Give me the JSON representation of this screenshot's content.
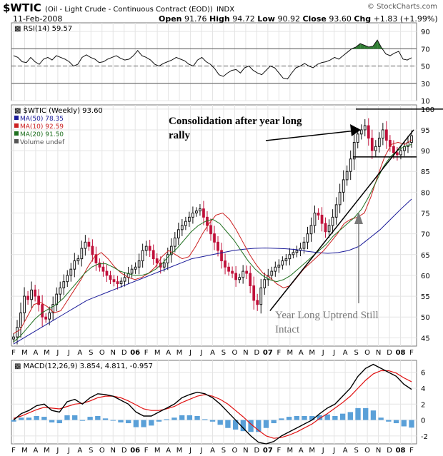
{
  "header": {
    "symbol": "$WTIC",
    "description": "(Oil - Light Crude - Continuous Contract (EOD))",
    "exchange": "INDX",
    "date": "11-Feb-2008",
    "open_label": "Open",
    "open": "91.76",
    "high_label": "High",
    "high": "94.72",
    "low_label": "Low",
    "low": "90.92",
    "close_label": "Close",
    "close": "93.60",
    "chg_label": "Chg",
    "chg": "+1.83 (+1.99%)",
    "copyright": "© StockCharts.com"
  },
  "annotations": {
    "consolidation_line1": "Consolidation after year long",
    "consolidation_line2": "rally",
    "uptrend_line1": "Year Long Uptrend Still",
    "uptrend_line2": "Intact"
  },
  "colors": {
    "candle_up": "#111111",
    "candle_down": "#c0103a",
    "ma50": "#1a1a99",
    "ma10": "#cc2020",
    "ma20": "#207020",
    "rsi_fill": "#2f7d32",
    "volume": "#5aa0d8"
  },
  "chart_data": [
    {
      "type": "line",
      "title": "RSI(14) 59.57",
      "ylim": [
        10,
        100
      ],
      "y_ticks": [
        10,
        30,
        50,
        70,
        90
      ],
      "reference_lines": [
        30,
        50,
        70
      ],
      "grid": true,
      "series": [
        {
          "name": "RSI(14)",
          "values": [
            62,
            60,
            55,
            54,
            60,
            55,
            52,
            58,
            60,
            57,
            62,
            60,
            58,
            55,
            50,
            52,
            60,
            63,
            60,
            58,
            54,
            55,
            58,
            60,
            62,
            59,
            57,
            58,
            62,
            68,
            62,
            60,
            57,
            52,
            50,
            53,
            55,
            57,
            60,
            58,
            56,
            52,
            50,
            57,
            60,
            55,
            52,
            47,
            40,
            38,
            42,
            45,
            46,
            42,
            48,
            50,
            45,
            42,
            40,
            45,
            50,
            48,
            42,
            36,
            35,
            42,
            48,
            50,
            53,
            50,
            48,
            52,
            54,
            55,
            57,
            60,
            58,
            62,
            66,
            70,
            72,
            76,
            74,
            72,
            73,
            80,
            71,
            64,
            62,
            65,
            67,
            58,
            57,
            59.57
          ]
        }
      ]
    },
    {
      "type": "line",
      "title": "$WTIC (Weekly) 93.60",
      "ylim": [
        43,
        101
      ],
      "y_ticks": [
        45,
        50,
        55,
        60,
        65,
        70,
        75,
        80,
        85,
        90,
        95,
        100
      ],
      "grid": true,
      "legend_position": "top-left",
      "x_tick_labels": [
        "F",
        "M",
        "A",
        "M",
        "J",
        "J",
        "A",
        "S",
        "O",
        "N",
        "D",
        "06",
        "F",
        "M",
        "A",
        "M",
        "J",
        "J",
        "A",
        "S",
        "O",
        "N",
        "D",
        "07",
        "F",
        "M",
        "A",
        "M",
        "J",
        "J",
        "A",
        "S",
        "O",
        "N",
        "D",
        "08",
        "F"
      ],
      "series": [
        {
          "name": "$WTIC (Weekly)",
          "values": [
            45.2,
            47.5,
            51.0,
            55.0,
            54.2,
            56.5,
            55.0,
            53.0,
            50.0,
            49.5,
            51.0,
            53.0,
            55.5,
            57.0,
            58.5,
            60.0,
            61.5,
            63.5,
            64.0,
            66.5,
            68.0,
            67.0,
            65.0,
            63.0,
            62.0,
            61.0,
            60.0,
            59.0,
            58.5,
            58.0,
            58.6,
            59.5,
            60.5,
            61.5,
            62.0,
            63.5,
            66.0,
            67.0,
            66.0,
            64.0,
            63.0,
            62.0,
            63.0,
            65.0,
            67.0,
            69.0,
            71.0,
            72.0,
            73.0,
            74.0,
            75.0,
            75.5,
            76.0,
            74.0,
            72.0,
            70.0,
            68.0,
            66.0,
            63.5,
            62.0,
            61.0,
            60.5,
            59.0,
            59.5,
            61.0,
            60.5,
            57.5,
            54.0,
            53.0,
            57.0,
            59.0,
            60.0,
            61.0,
            62.0,
            62.5,
            63.5,
            64.0,
            65.0,
            65.5,
            66.0,
            66.5,
            68.0,
            70.0,
            72.0,
            75.0,
            74.5,
            72.5,
            70.5,
            72.0,
            74.0,
            77.0,
            80.0,
            83.0,
            85.0,
            88.0,
            92.0,
            94.0,
            95.0,
            96.0,
            93.0,
            90.0,
            91.0,
            93.0,
            95.0,
            92.5,
            91.0,
            89.5,
            89.0,
            90.0,
            91.0,
            92.0,
            93.6
          ]
        },
        {
          "name": "MA(50)",
          "value_label": "78.35",
          "values": [
            43.5,
            45.0,
            46.5,
            48.0,
            49.5,
            51.0,
            52.5,
            54.0,
            55.0,
            56.0,
            57.0,
            58.0,
            59.0,
            60.0,
            61.0,
            62.0,
            63.0,
            64.0,
            64.5,
            65.0,
            65.5,
            66.0,
            66.3,
            66.5,
            66.6,
            66.5,
            66.4,
            66.2,
            65.8,
            65.5,
            65.3,
            65.5,
            66.0,
            67.0,
            69.0,
            71.0,
            73.5,
            76.0,
            78.35
          ]
        },
        {
          "name": "MA(10)",
          "value_label": "92.59",
          "values": [
            46.0,
            47.0,
            50.0,
            53.0,
            53.5,
            52.5,
            51.0,
            51.5,
            54.0,
            56.5,
            59.0,
            62.0,
            64.5,
            65.5,
            64.0,
            62.0,
            60.5,
            59.5,
            59.0,
            59.5,
            60.5,
            62.0,
            64.5,
            66.0,
            65.0,
            64.0,
            64.5,
            67.0,
            70.0,
            72.5,
            74.5,
            75.0,
            73.5,
            71.0,
            68.0,
            65.0,
            62.5,
            60.5,
            59.5,
            58.0,
            57.0,
            57.5,
            59.5,
            61.5,
            63.0,
            64.5,
            66.0,
            68.0,
            70.0,
            72.5,
            73.5,
            74.0,
            75.0,
            79.0,
            84.0,
            88.5,
            91.5,
            92.0,
            91.5,
            92.59
          ]
        },
        {
          "name": "MA(20)",
          "value_label": "91.50",
          "values": [
            44.0,
            45.5,
            47.5,
            49.5,
            51.0,
            52.0,
            53.0,
            54.5,
            56.5,
            58.5,
            60.5,
            62.0,
            62.8,
            62.8,
            62.0,
            61.0,
            60.5,
            60.0,
            60.0,
            60.5,
            61.5,
            63.0,
            65.0,
            66.5,
            68.5,
            70.5,
            72.0,
            73.0,
            73.5,
            72.5,
            70.5,
            68.5,
            66.0,
            63.5,
            61.5,
            60.0,
            59.0,
            58.5,
            59.0,
            60.0,
            61.5,
            63.0,
            64.5,
            66.0,
            67.5,
            69.5,
            71.0,
            72.5,
            74.0,
            76.0,
            79.0,
            82.5,
            86.0,
            88.5,
            90.0,
            91.0,
            91.5
          ]
        },
        {
          "name": "Volume undef",
          "values": []
        }
      ],
      "trendlines": [
        {
          "name": "uptrend",
          "from": [
            "07-Jan",
            51.5
          ],
          "to": [
            "08-Feb",
            95.0
          ]
        },
        {
          "name": "consolidation-top",
          "value": 100
        },
        {
          "name": "consolidation-bottom",
          "value": 88.5
        }
      ]
    },
    {
      "type": "line",
      "title": "MACD(12,26,9) 3.854, 4.811, -0.957",
      "ylim": [
        -3,
        7.5
      ],
      "y_ticks": [
        -2,
        0,
        2,
        4,
        6
      ],
      "grid": true,
      "series": [
        {
          "name": "MACD(12,26,9)",
          "value_label": "3.854",
          "values": [
            0.0,
            0.8,
            1.2,
            1.8,
            2.0,
            1.2,
            1.0,
            2.3,
            2.6,
            2.0,
            2.8,
            3.3,
            3.2,
            3.0,
            2.5,
            2.0,
            1.0,
            0.5,
            0.5,
            1.0,
            1.5,
            2.0,
            2.8,
            3.2,
            3.5,
            3.3,
            2.8,
            2.0,
            1.0,
            0.0,
            -1.0,
            -2.0,
            -2.8,
            -3.0,
            -2.7,
            -2.0,
            -1.5,
            -1.0,
            -0.5,
            0.0,
            0.8,
            1.5,
            2.0,
            3.0,
            4.0,
            5.5,
            6.5,
            7.0,
            6.5,
            6.0,
            5.5,
            4.5,
            3.854
          ]
        },
        {
          "name": "signal",
          "value_label": "4.811",
          "values": [
            0.2,
            0.5,
            0.9,
            1.3,
            1.6,
            1.5,
            1.4,
            1.7,
            2.0,
            2.1,
            2.4,
            2.8,
            3.0,
            3.0,
            2.8,
            2.4,
            1.9,
            1.4,
            1.2,
            1.2,
            1.4,
            1.7,
            2.2,
            2.6,
            3.0,
            3.2,
            3.0,
            2.6,
            2.0,
            1.2,
            0.4,
            -0.5,
            -1.3,
            -2.0,
            -2.3,
            -2.2,
            -1.9,
            -1.5,
            -1.0,
            -0.5,
            0.2,
            0.8,
            1.5,
            2.2,
            3.0,
            4.0,
            5.0,
            5.8,
            6.2,
            6.2,
            5.9,
            5.3,
            4.811
          ]
        },
        {
          "name": "histogram",
          "value_label": "-0.957",
          "values": [
            -0.2,
            0.3,
            0.3,
            0.5,
            0.4,
            -0.3,
            -0.4,
            0.6,
            0.6,
            -0.1,
            0.4,
            0.5,
            0.2,
            0.0,
            -0.3,
            -0.4,
            -0.9,
            -0.9,
            -0.7,
            -0.2,
            0.1,
            0.3,
            0.6,
            0.6,
            0.5,
            0.1,
            -0.2,
            -0.6,
            -1.0,
            -1.2,
            -1.4,
            -1.5,
            -1.5,
            -1.0,
            -0.4,
            0.2,
            0.4,
            0.5,
            0.5,
            0.5,
            0.6,
            0.7,
            0.5,
            0.8,
            1.0,
            1.5,
            1.5,
            1.2,
            0.3,
            -0.2,
            -0.4,
            -0.8,
            -0.957
          ]
        }
      ]
    }
  ]
}
